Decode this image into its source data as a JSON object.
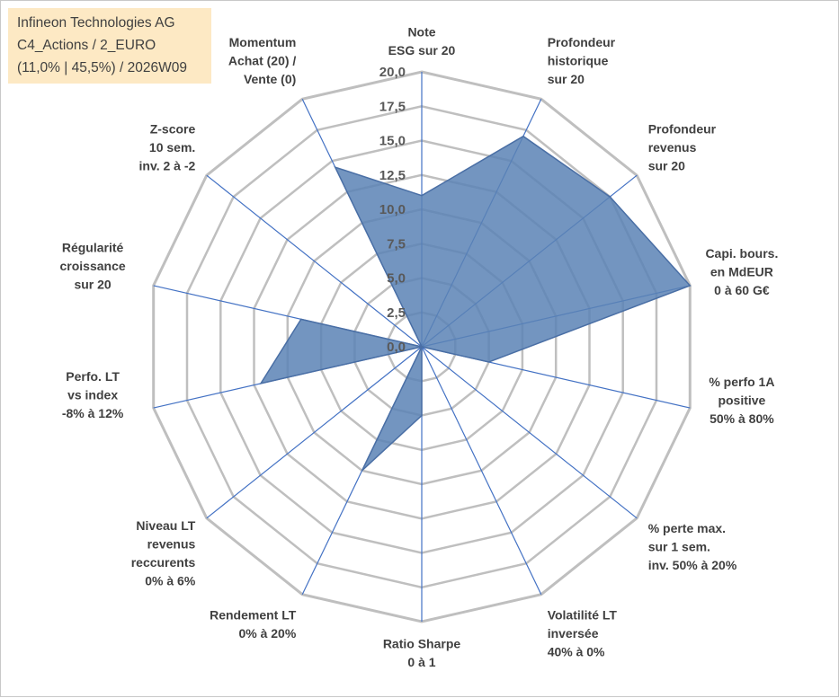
{
  "info_box": {
    "line1": "Infineon Technologies AG",
    "line2": "C4_Actions / 2_EURO",
    "line3": "(11,0% | 45,5%) / 2026W09"
  },
  "colors": {
    "fill": "#5b82b5",
    "stroke": "#4a6fa5",
    "grid": "#bfbfbf",
    "spoke": "#4472c4",
    "info_bg": "#fde9c4"
  },
  "chart_data": {
    "type": "radar",
    "rmin": 0,
    "rmax": 20,
    "tick_step": 2.5,
    "ticks": [
      "0,0",
      "2,5",
      "5,0",
      "7,5",
      "10,0",
      "12,5",
      "15,0",
      "17,5",
      "20,0"
    ],
    "axes": [
      {
        "label": [
          "Note",
          "ESG sur 20"
        ],
        "value": 11.0
      },
      {
        "label": [
          "Profondeur",
          "historique",
          "sur 20"
        ],
        "value": 17.0
      },
      {
        "label": [
          "Profondeur",
          "revenus",
          "sur 20"
        ],
        "value": 17.5
      },
      {
        "label": [
          "Capi. bours.",
          "en MdEUR",
          "0 à 60 G€"
        ],
        "value": 20.0
      },
      {
        "label": [
          "% perfo 1A",
          "positive",
          "50% à 80%"
        ],
        "value": 5.0
      },
      {
        "label": [
          "% perte max.",
          "sur 1 sem.",
          "inv. 50% à 20%"
        ],
        "value": 0.0
      },
      {
        "label": [
          "Volatilité LT",
          "inversée",
          "40% à 0%"
        ],
        "value": 0.0
      },
      {
        "label": [
          "Ratio Sharpe",
          "0 à 1"
        ],
        "value": 5.0
      },
      {
        "label": [
          "Rendement LT",
          "0% à 20%"
        ],
        "value": 10.0
      },
      {
        "label": [
          "Niveau LT",
          "revenus",
          "reccurents",
          "0% à 6%"
        ],
        "value": 0.0
      },
      {
        "label": [
          "Perfo. LT",
          "vs index",
          "-8% à 12%"
        ],
        "value": 12.0
      },
      {
        "label": [
          "Régularité",
          "croissance",
          "sur 20"
        ],
        "value": 9.0
      },
      {
        "label": [
          "Z-score",
          "10 sem.",
          "inv. 2 à -2"
        ],
        "value": 0.0
      },
      {
        "label": [
          "Momentum",
          "Achat (20) /",
          "Vente (0)"
        ],
        "value": 14.5
      }
    ]
  }
}
